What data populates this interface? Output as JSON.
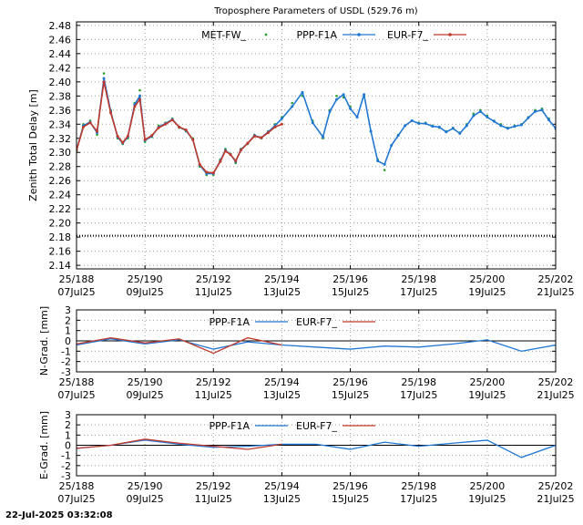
{
  "footer": {
    "timestamp": "22-Jul-2025 03:32:08"
  },
  "colors": {
    "met": "#2ca02c",
    "ppp": "#1f77d4",
    "eur": "#c0392b",
    "ref": "#000000"
  },
  "chart_data": [
    {
      "type": "line",
      "title": "Troposphere Parameters of USDL (529.76 m)",
      "ylabel": "Zenith Total Delay [m]",
      "xlim": [
        188,
        202
      ],
      "ylim": [
        2.135,
        2.485
      ],
      "yticks": [
        "2.14",
        "2.16",
        "2.18",
        "2.20",
        "2.22",
        "2.24",
        "2.26",
        "2.28",
        "2.30",
        "2.32",
        "2.34",
        "2.36",
        "2.38",
        "2.40",
        "2.42",
        "2.44",
        "2.46",
        "2.48"
      ],
      "xticks": [
        {
          "top": "25/188",
          "bottom": "07Jul25"
        },
        {
          "top": "25/190",
          "bottom": "09Jul25"
        },
        {
          "top": "25/192",
          "bottom": "11Jul25"
        },
        {
          "top": "25/194",
          "bottom": "13Jul25"
        },
        {
          "top": "25/196",
          "bottom": "15Jul25"
        },
        {
          "top": "25/198",
          "bottom": "17Jul25"
        },
        {
          "top": "25/200",
          "bottom": "19Jul25"
        },
        {
          "top": "25/202",
          "bottom": "21Jul25"
        }
      ],
      "grid": true,
      "legend_position": "top-center",
      "series": [
        {
          "name": "MET-FW_",
          "style": "points",
          "color_key": "met",
          "x": [
            188.0,
            188.2,
            188.4,
            188.6,
            188.8,
            189.0,
            189.2,
            189.35,
            189.5,
            189.7,
            189.85,
            190.0,
            190.2,
            190.4,
            190.6,
            190.8,
            191.0,
            191.2,
            191.4,
            191.6,
            191.8,
            192.0,
            192.2,
            192.35,
            192.5,
            192.65,
            192.8,
            193.0,
            193.2,
            193.4,
            193.6,
            193.8,
            194.0,
            194.3,
            194.6,
            194.9,
            195.2,
            195.4,
            195.6,
            195.8,
            196.0,
            196.2,
            196.4,
            196.6,
            196.8,
            197.0,
            197.2,
            197.4,
            197.6,
            197.8,
            198.0,
            198.2,
            198.4,
            198.6,
            198.8,
            199.0,
            199.2,
            199.4,
            199.6,
            199.8,
            200.0,
            200.2,
            200.4,
            200.6,
            200.8,
            201.0,
            201.2,
            201.4,
            201.6,
            201.8,
            202.0
          ],
          "y": [
            2.302,
            2.34,
            2.345,
            2.325,
            2.412,
            2.36,
            2.32,
            2.312,
            2.32,
            2.37,
            2.388,
            2.315,
            2.322,
            2.338,
            2.342,
            2.348,
            2.335,
            2.33,
            2.32,
            2.28,
            2.268,
            2.268,
            2.29,
            2.305,
            2.298,
            2.285,
            2.305,
            2.312,
            2.325,
            2.32,
            2.33,
            2.34,
            2.35,
            2.37,
            2.38,
            2.345,
            2.32,
            2.36,
            2.38,
            2.378,
            2.365,
            2.35,
            2.38,
            2.33,
            2.29,
            2.275,
            2.31,
            2.325,
            2.338,
            2.345,
            2.342,
            2.342,
            2.338,
            2.335,
            2.33,
            2.335,
            2.328,
            2.34,
            2.355,
            2.36,
            2.352,
            2.345,
            2.34,
            2.335,
            2.338,
            2.34,
            2.35,
            2.36,
            2.362,
            2.348,
            2.335
          ]
        },
        {
          "name": "PPP-F1A",
          "style": "line-points",
          "color_key": "ppp",
          "x": [
            188.0,
            188.2,
            188.4,
            188.6,
            188.8,
            189.0,
            189.2,
            189.35,
            189.5,
            189.7,
            189.85,
            190.0,
            190.2,
            190.4,
            190.6,
            190.8,
            191.0,
            191.2,
            191.4,
            191.6,
            191.8,
            192.0,
            192.2,
            192.35,
            192.5,
            192.65,
            192.8,
            193.0,
            193.2,
            193.4,
            193.6,
            193.8,
            194.0,
            194.3,
            194.6,
            194.9,
            195.2,
            195.4,
            195.6,
            195.8,
            196.0,
            196.2,
            196.4,
            196.6,
            196.8,
            197.0,
            197.2,
            197.4,
            197.6,
            197.8,
            198.0,
            198.2,
            198.4,
            198.6,
            198.8,
            199.0,
            199.2,
            199.4,
            199.6,
            199.8,
            200.0,
            200.2,
            200.4,
            200.6,
            200.8,
            201.0,
            201.2,
            201.4,
            201.6,
            201.8,
            202.0
          ],
          "y": [
            2.303,
            2.338,
            2.343,
            2.328,
            2.405,
            2.358,
            2.322,
            2.313,
            2.322,
            2.368,
            2.38,
            2.317,
            2.323,
            2.336,
            2.341,
            2.347,
            2.336,
            2.331,
            2.318,
            2.282,
            2.27,
            2.27,
            2.288,
            2.303,
            2.297,
            2.287,
            2.304,
            2.313,
            2.324,
            2.321,
            2.329,
            2.338,
            2.348,
            2.365,
            2.385,
            2.342,
            2.322,
            2.358,
            2.375,
            2.382,
            2.362,
            2.35,
            2.382,
            2.33,
            2.288,
            2.283,
            2.31,
            2.324,
            2.338,
            2.345,
            2.341,
            2.341,
            2.337,
            2.336,
            2.329,
            2.334,
            2.327,
            2.338,
            2.352,
            2.358,
            2.35,
            2.344,
            2.338,
            2.334,
            2.337,
            2.339,
            2.349,
            2.358,
            2.36,
            2.346,
            2.334
          ]
        },
        {
          "name": "EUR-F7_",
          "style": "line-points",
          "color_key": "eur",
          "x": [
            188.0,
            188.2,
            188.4,
            188.6,
            188.8,
            189.0,
            189.2,
            189.35,
            189.5,
            189.7,
            189.85,
            190.0,
            190.2,
            190.4,
            190.6,
            190.8,
            191.0,
            191.2,
            191.4,
            191.6,
            191.8,
            192.0,
            192.2,
            192.35,
            192.5,
            192.65,
            192.8,
            193.0,
            193.2,
            193.4,
            193.6,
            193.8,
            194.0
          ],
          "y": [
            2.303,
            2.336,
            2.342,
            2.33,
            2.4,
            2.356,
            2.323,
            2.314,
            2.323,
            2.365,
            2.375,
            2.318,
            2.324,
            2.335,
            2.34,
            2.346,
            2.336,
            2.332,
            2.318,
            2.283,
            2.272,
            2.271,
            2.287,
            2.302,
            2.297,
            2.288,
            2.303,
            2.313,
            2.323,
            2.321,
            2.328,
            2.336,
            2.34
          ]
        },
        {
          "name": "",
          "style": "dotted-reference",
          "color_key": "ref",
          "x": [
            188,
            202
          ],
          "y": [
            2.182,
            2.182
          ]
        }
      ]
    },
    {
      "type": "line",
      "ylabel": "N-Grad. [mm]",
      "xlim": [
        188,
        202
      ],
      "ylim": [
        -3,
        3
      ],
      "yticks": [
        "3",
        "2",
        "1",
        "0",
        "-1",
        "-2",
        "-3"
      ],
      "xticks": [
        {
          "top": "25/188",
          "bottom": "07Jul25"
        },
        {
          "top": "25/190",
          "bottom": "09Jul25"
        },
        {
          "top": "25/192",
          "bottom": "11Jul25"
        },
        {
          "top": "25/194",
          "bottom": "13Jul25"
        },
        {
          "top": "25/196",
          "bottom": "15Jul25"
        },
        {
          "top": "25/198",
          "bottom": "17Jul25"
        },
        {
          "top": "25/200",
          "bottom": "19Jul25"
        },
        {
          "top": "25/202",
          "bottom": "21Jul25"
        }
      ],
      "grid": true,
      "legend_position": "top-center",
      "series": [
        {
          "name": "PPP-F1A",
          "color_key": "ppp",
          "x": [
            188,
            189,
            190,
            191,
            192,
            193,
            194,
            195,
            196,
            197,
            198,
            199,
            200,
            201,
            202
          ],
          "y": [
            -0.4,
            0.2,
            -0.3,
            0.1,
            -0.8,
            -0.1,
            -0.4,
            -0.6,
            -0.8,
            -0.5,
            -0.6,
            -0.3,
            0.1,
            -1.0,
            -0.4
          ]
        },
        {
          "name": "EUR-F7_",
          "color_key": "eur",
          "x": [
            188,
            189,
            190,
            191,
            192,
            193,
            194
          ],
          "y": [
            -0.3,
            0.3,
            -0.2,
            0.2,
            -1.2,
            0.3,
            -0.4
          ]
        }
      ]
    },
    {
      "type": "line",
      "ylabel": "E-Grad. [mm]",
      "xlim": [
        188,
        202
      ],
      "ylim": [
        -3,
        3
      ],
      "yticks": [
        "3",
        "2",
        "1",
        "0",
        "-1",
        "-2",
        "-3"
      ],
      "xticks": [
        {
          "top": "25/188",
          "bottom": "07Jul25"
        },
        {
          "top": "25/190",
          "bottom": "09Jul25"
        },
        {
          "top": "25/192",
          "bottom": "11Jul25"
        },
        {
          "top": "25/194",
          "bottom": "13Jul25"
        },
        {
          "top": "25/196",
          "bottom": "15Jul25"
        },
        {
          "top": "25/198",
          "bottom": "17Jul25"
        },
        {
          "top": "25/200",
          "bottom": "19Jul25"
        },
        {
          "top": "25/202",
          "bottom": "21Jul25"
        }
      ],
      "grid": true,
      "legend_position": "top-center",
      "series": [
        {
          "name": "PPP-F1A",
          "color_key": "ppp",
          "x": [
            188,
            189,
            190,
            191,
            192,
            193,
            194,
            195,
            196,
            197,
            198,
            199,
            200,
            201,
            202
          ],
          "y": [
            -0.3,
            0.0,
            0.5,
            0.1,
            -0.2,
            -0.1,
            0.1,
            0.1,
            -0.4,
            0.3,
            -0.1,
            0.2,
            0.5,
            -1.2,
            0.0
          ]
        },
        {
          "name": "EUR-F7_",
          "color_key": "eur",
          "x": [
            188,
            189,
            190,
            191,
            192,
            193,
            194
          ],
          "y": [
            -0.3,
            0.0,
            0.6,
            0.2,
            -0.1,
            -0.4,
            0.1
          ]
        }
      ]
    }
  ]
}
